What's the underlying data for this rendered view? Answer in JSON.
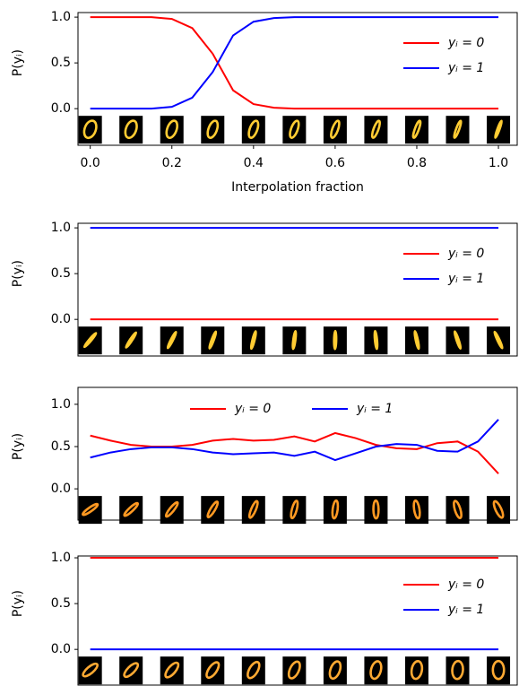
{
  "chart_data": [
    {
      "type": "line",
      "ylabel": "P(yᵢ)",
      "xlabel": "Interpolation fraction",
      "x": [
        0,
        0.05,
        0.1,
        0.15,
        0.2,
        0.25,
        0.3,
        0.35,
        0.4,
        0.45,
        0.5,
        0.55,
        0.6,
        0.65,
        0.7,
        0.75,
        0.8,
        0.85,
        0.9,
        0.95,
        1.0
      ],
      "series": [
        {
          "name": "yᵢ = 0",
          "color": "#ff0000",
          "values": [
            1,
            1,
            1,
            1,
            0.98,
            0.88,
            0.6,
            0.2,
            0.05,
            0.01,
            0,
            0,
            0,
            0,
            0,
            0,
            0,
            0,
            0,
            0,
            0
          ]
        },
        {
          "name": "yᵢ = 1",
          "color": "#0000ff",
          "values": [
            0,
            0,
            0,
            0,
            0.02,
            0.12,
            0.4,
            0.8,
            0.95,
            0.99,
            1,
            1,
            1,
            1,
            1,
            1,
            1,
            1,
            1,
            1,
            1
          ]
        }
      ],
      "xlim": [
        -0.03,
        1.046
      ],
      "ylim": [
        -0.4,
        1.05
      ],
      "xticks": [
        {
          "value": 0,
          "label": "0.0"
        },
        {
          "value": 0.2,
          "label": "0.2"
        },
        {
          "value": 0.4,
          "label": "0.4"
        },
        {
          "value": 0.6,
          "label": "0.6"
        },
        {
          "value": 0.8,
          "label": "0.8"
        },
        {
          "value": 1,
          "label": "1.0"
        }
      ],
      "yticks": [
        {
          "value": 0,
          "label": "0.0"
        },
        {
          "value": 0.5,
          "label": "0.5"
        },
        {
          "value": 1,
          "label": "1.0"
        }
      ],
      "legend": "center right"
    },
    {
      "type": "line",
      "ylabel": "P(yᵢ)",
      "x": [
        0,
        1
      ],
      "series": [
        {
          "name": "yᵢ = 0",
          "color": "#ff0000",
          "values": [
            0,
            0
          ]
        },
        {
          "name": "yᵢ = 1",
          "color": "#0000ff",
          "values": [
            1,
            1
          ]
        }
      ],
      "xlim": [
        -0.03,
        1.046
      ],
      "ylim": [
        -0.4,
        1.05
      ],
      "yticks": [
        {
          "value": 0,
          "label": "0.0"
        },
        {
          "value": 0.5,
          "label": "0.5"
        },
        {
          "value": 1,
          "label": "1.0"
        }
      ],
      "legend": "center right"
    },
    {
      "type": "line",
      "ylabel": "P(yᵢ)",
      "x": [
        0,
        0.05,
        0.1,
        0.15,
        0.2,
        0.25,
        0.3,
        0.35,
        0.4,
        0.45,
        0.5,
        0.55,
        0.6,
        0.65,
        0.7,
        0.75,
        0.8,
        0.85,
        0.9,
        0.95,
        1.0
      ],
      "series": [
        {
          "name": "yᵢ = 0",
          "color": "#ff0000",
          "values": [
            0.63,
            0.57,
            0.52,
            0.5,
            0.5,
            0.52,
            0.57,
            0.59,
            0.57,
            0.58,
            0.62,
            0.56,
            0.66,
            0.6,
            0.52,
            0.48,
            0.47,
            0.54,
            0.56,
            0.44,
            0.18
          ]
        },
        {
          "name": "yᵢ = 1",
          "color": "#0000ff",
          "values": [
            0.37,
            0.43,
            0.47,
            0.49,
            0.49,
            0.47,
            0.43,
            0.41,
            0.42,
            0.43,
            0.39,
            0.44,
            0.34,
            0.42,
            0.5,
            0.53,
            0.52,
            0.45,
            0.44,
            0.56,
            0.82
          ]
        }
      ],
      "xlim": [
        -0.03,
        1.046
      ],
      "ylim": [
        -0.37,
        1.2
      ],
      "yticks": [
        {
          "value": 0,
          "label": "0.0"
        },
        {
          "value": 0.5,
          "label": "0.5"
        },
        {
          "value": 1,
          "label": "1.0"
        }
      ],
      "legend": "upper center"
    },
    {
      "type": "line",
      "ylabel": "P(yᵢ)",
      "x": [
        0,
        1
      ],
      "series": [
        {
          "name": "yᵢ = 0",
          "color": "#ff0000",
          "values": [
            1,
            1
          ]
        },
        {
          "name": "yᵢ = 1",
          "color": "#0000ff",
          "values": [
            0,
            0
          ]
        }
      ],
      "xlim": [
        -0.03,
        1.046
      ],
      "ylim": [
        -0.39,
        1.02
      ],
      "yticks": [
        {
          "value": 0,
          "label": "0.0"
        },
        {
          "value": 0.5,
          "label": "0.5"
        },
        {
          "value": 1,
          "label": "1.0"
        }
      ],
      "legend": "center right"
    }
  ]
}
